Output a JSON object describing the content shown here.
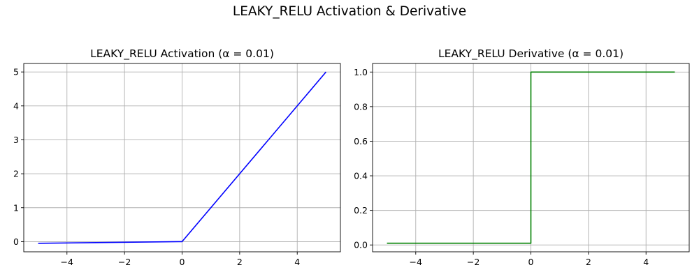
{
  "figure": {
    "suptitle": "LEAKY_RELU Activation & Derivative"
  },
  "chart_data": [
    {
      "type": "line",
      "title": "LEAKY_RELU Activation (α = 0.01)",
      "xlabel": "",
      "ylabel": "",
      "xlim": [
        -5.5,
        5.5
      ],
      "ylim": [
        -0.3,
        5.25
      ],
      "xticks": [
        -4,
        -2,
        0,
        2,
        4
      ],
      "xtick_labels": [
        "−4",
        "−2",
        "0",
        "2",
        "4"
      ],
      "yticks": [
        0,
        1,
        2,
        3,
        4,
        5
      ],
      "ytick_labels": [
        "0",
        "1",
        "2",
        "3",
        "4",
        "5"
      ],
      "grid": true,
      "series": [
        {
          "color": "#0000ff",
          "x": [
            -5,
            0,
            5
          ],
          "y": [
            -0.05,
            0,
            5
          ]
        }
      ]
    },
    {
      "type": "line",
      "title": "LEAKY_RELU Derivative (α = 0.01)",
      "xlabel": "",
      "ylabel": "",
      "xlim": [
        -5.5,
        5.5
      ],
      "ylim": [
        -0.0395,
        1.0495
      ],
      "xticks": [
        -4,
        -2,
        0,
        2,
        4
      ],
      "xtick_labels": [
        "−4",
        "−2",
        "0",
        "2",
        "4"
      ],
      "yticks": [
        0.0,
        0.2,
        0.4,
        0.6,
        0.8,
        1.0
      ],
      "ytick_labels": [
        "0.0",
        "0.2",
        "0.4",
        "0.6",
        "0.8",
        "1.0"
      ],
      "grid": true,
      "series": [
        {
          "color": "#008000",
          "x": [
            -5,
            0,
            0,
            5
          ],
          "y": [
            0.01,
            0.01,
            1,
            1
          ]
        }
      ]
    }
  ]
}
